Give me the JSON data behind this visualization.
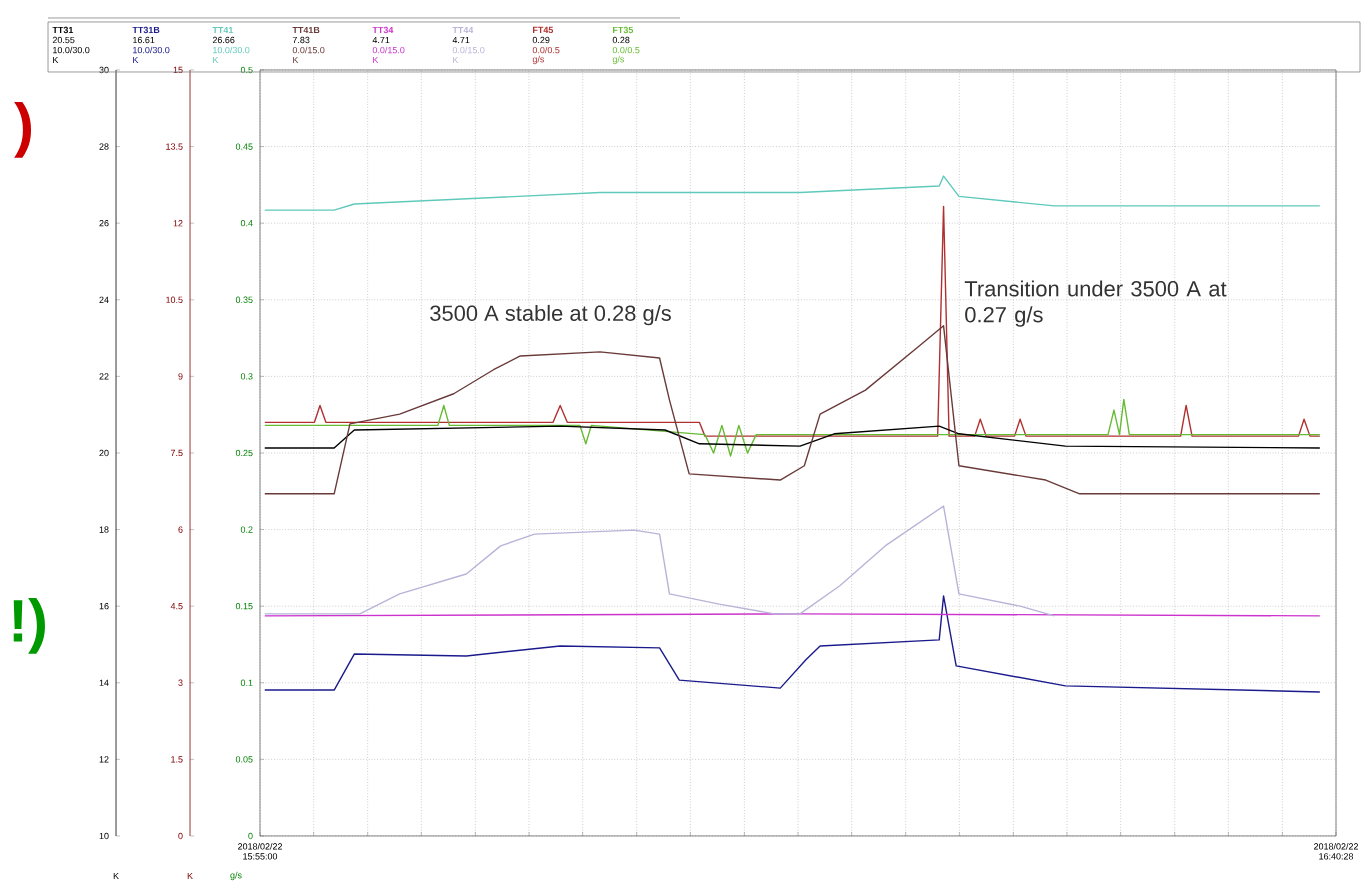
{
  "chart_data": {
    "type": "line",
    "xlim": [
      "2018-02-22T15:55:00",
      "2018-02-22T16:40:28"
    ],
    "xticks": [
      {
        "value": "2018-02-22T15:55:00",
        "label": "2018/02/22 15:55:00"
      },
      {
        "value": "2018-02-22T15:57:16",
        "label": null
      },
      {
        "value": "2018-02-22T15:59:33",
        "label": null
      },
      {
        "value": "2018-02-22T16:01:49",
        "label": null
      },
      {
        "value": "2018-02-22T16:04:06",
        "label": null
      },
      {
        "value": "2018-02-22T16:06:22",
        "label": null
      },
      {
        "value": "2018-02-22T16:08:38",
        "label": null
      },
      {
        "value": "2018-02-22T16:10:55",
        "label": null
      },
      {
        "value": "2018-02-22T16:13:11",
        "label": null
      },
      {
        "value": "2018-02-22T16:15:28",
        "label": null
      },
      {
        "value": "2018-02-22T16:17:44",
        "label": null
      },
      {
        "value": "2018-02-22T16:20:00",
        "label": null
      },
      {
        "value": "2018-02-22T16:22:17",
        "label": null
      },
      {
        "value": "2018-02-22T16:24:33",
        "label": null
      },
      {
        "value": "2018-02-22T16:26:50",
        "label": null
      },
      {
        "value": "2018-02-22T16:29:06",
        "label": null
      },
      {
        "value": "2018-02-22T16:31:22",
        "label": null
      },
      {
        "value": "2018-02-22T16:33:39",
        "label": null
      },
      {
        "value": "2018-02-22T16:35:55",
        "label": null
      },
      {
        "value": "2018-02-22T16:38:12",
        "label": null
      },
      {
        "value": "2018-02-22T16:40:28",
        "label": "2018/02/22 16:40:28"
      }
    ],
    "ylabel": "g/s",
    "ylim": [
      0,
      0.5
    ],
    "yticks": [
      0,
      0.05,
      0.1,
      0.15,
      0.2,
      0.25,
      0.3,
      0.35,
      0.4,
      0.45,
      0.5
    ],
    "y2label": "K",
    "y2lim": [
      10,
      30
    ],
    "y2ticks": [
      10,
      12,
      14,
      16,
      18,
      20,
      22,
      24,
      26,
      28,
      30
    ],
    "y3label": "K",
    "y3lim": [
      0,
      15
    ],
    "y3ticks": [
      0,
      1.5,
      3,
      4.5,
      6,
      7.5,
      9,
      10.5,
      12,
      13.5,
      15
    ],
    "grid": true,
    "legend": "top",
    "series": [
      {
        "name": "TT31",
        "color": "#000000",
        "axis": "y2",
        "x": [
          "2018-02-22T15:55:12",
          "2018-02-22T15:58:08",
          "2018-02-22T15:58:59",
          "2018-02-22T16:07:41",
          "2018-02-22T16:12:07",
          "2018-02-22T16:13:34",
          "2018-02-22T16:17:49",
          "2018-02-22T16:19:16",
          "2018-02-22T16:23:42",
          "2018-02-22T16:24:32",
          "2018-02-22T16:29:02",
          "2018-02-22T16:39:47"
        ],
        "values": [
          20.13,
          20.13,
          20.6,
          20.7,
          20.6,
          20.24,
          20.18,
          20.5,
          20.7,
          20.5,
          20.18,
          20.13
        ]
      },
      {
        "name": "TT31B",
        "color": "#1a1a8c",
        "axis": "y2",
        "x": [
          "2018-02-22T15:55:12",
          "2018-02-22T15:58:08",
          "2018-02-22T15:58:59",
          "2018-02-22T16:03:43",
          "2018-02-22T16:07:41",
          "2018-02-22T16:11:53",
          "2018-02-22T16:12:43",
          "2018-02-22T16:16:59",
          "2018-02-22T16:18:04",
          "2018-02-22T16:18:40",
          "2018-02-22T16:23:42",
          "2018-02-22T16:23:53",
          "2018-02-22T16:24:25",
          "2018-02-22T16:29:02",
          "2018-02-22T16:39:47"
        ],
        "values": [
          13.81,
          13.81,
          14.75,
          14.7,
          14.96,
          14.91,
          14.07,
          13.86,
          14.6,
          14.96,
          15.12,
          16.27,
          14.44,
          13.92,
          13.76
        ]
      },
      {
        "name": "TT41",
        "color": "#5fc9bb",
        "axis": "y2",
        "x": [
          "2018-02-22T15:55:12",
          "2018-02-22T15:58:08",
          "2018-02-22T15:58:59",
          "2018-02-22T16:09:22",
          "2018-02-22T16:17:49",
          "2018-02-22T16:23:42",
          "2018-02-22T16:23:53",
          "2018-02-22T16:24:32",
          "2018-02-22T16:28:34",
          "2018-02-22T16:39:47"
        ],
        "values": [
          26.34,
          26.34,
          26.5,
          26.8,
          26.8,
          26.97,
          27.23,
          26.7,
          26.45,
          26.45
        ]
      },
      {
        "name": "TT41B",
        "color": "#6a3a3a",
        "axis": "y3",
        "x": [
          "2018-02-22T15:55:12",
          "2018-02-22T15:58:08",
          "2018-02-22T15:58:48",
          "2018-02-22T16:00:54",
          "2018-02-22T16:03:11",
          "2018-02-22T16:04:52",
          "2018-02-22T16:06:00",
          "2018-02-22T16:09:22",
          "2018-02-22T16:11:53",
          "2018-02-22T16:12:18",
          "2018-02-22T16:13:08",
          "2018-02-22T16:16:59",
          "2018-02-22T16:18:00",
          "2018-02-22T16:18:40",
          "2018-02-22T16:20:35",
          "2018-02-22T16:22:52",
          "2018-02-22T16:23:53",
          "2018-02-22T16:24:32",
          "2018-02-22T16:28:12",
          "2018-02-22T16:29:38",
          "2018-02-22T16:39:47"
        ],
        "values": [
          6.7,
          6.7,
          8.07,
          8.26,
          8.66,
          9.13,
          9.4,
          9.48,
          9.36,
          8.54,
          7.09,
          6.97,
          7.25,
          8.26,
          8.73,
          9.6,
          9.99,
          7.25,
          6.97,
          6.7,
          6.7
        ]
      },
      {
        "name": "TT34",
        "color": "#cc33cc",
        "axis": "y3",
        "x": [
          "2018-02-22T15:55:12",
          "2018-02-22T16:17:49",
          "2018-02-22T16:39:47"
        ],
        "values": [
          4.31,
          4.35,
          4.31
        ]
      },
      {
        "name": "TT44",
        "color": "#b8b4d8",
        "axis": "y3",
        "x": [
          "2018-02-22T15:55:12",
          "2018-02-22T15:59:13",
          "2018-02-22T16:00:54",
          "2018-02-22T16:03:43",
          "2018-02-22T16:05:10",
          "2018-02-22T16:06:36",
          "2018-02-22T16:10:48",
          "2018-02-22T16:11:53",
          "2018-02-22T16:12:18",
          "2018-02-22T16:14:24",
          "2018-02-22T16:16:44",
          "2018-02-22T16:17:49",
          "2018-02-22T16:19:30",
          "2018-02-22T16:21:25",
          "2018-02-22T16:23:53",
          "2018-02-22T16:24:32",
          "2018-02-22T16:27:07",
          "2018-02-22T16:28:34"
        ],
        "values": [
          4.35,
          4.35,
          4.74,
          5.13,
          5.68,
          5.91,
          5.99,
          5.91,
          4.74,
          4.54,
          4.35,
          4.35,
          4.9,
          5.68,
          6.46,
          4.74,
          4.5,
          4.31
        ]
      },
      {
        "name": "FT45",
        "color": "#b03030",
        "x": [
          "2018-02-22T15:55:12",
          "2018-02-22T15:57:18",
          "2018-02-22T15:57:32",
          "2018-02-22T15:57:47",
          "2018-02-22T16:07:23",
          "2018-02-22T16:07:41",
          "2018-02-22T16:07:59",
          "2018-02-22T16:13:34",
          "2018-02-22T16:13:48",
          "2018-02-22T16:23:38",
          "2018-02-22T16:23:53",
          "2018-02-22T16:24:07",
          "2018-02-22T16:25:12",
          "2018-02-22T16:25:26",
          "2018-02-22T16:25:41",
          "2018-02-22T16:26:53",
          "2018-02-22T16:27:07",
          "2018-02-22T16:27:22",
          "2018-02-22T16:33:54",
          "2018-02-22T16:34:08",
          "2018-02-22T16:34:23",
          "2018-02-22T16:38:53",
          "2018-02-22T16:39:07",
          "2018-02-22T16:39:22",
          "2018-02-22T16:39:47"
        ],
        "values": [
          0.27,
          0.27,
          0.281,
          0.27,
          0.27,
          0.281,
          0.27,
          0.27,
          0.261,
          0.261,
          0.411,
          0.261,
          0.261,
          0.272,
          0.261,
          0.261,
          0.272,
          0.261,
          0.261,
          0.281,
          0.261,
          0.261,
          0.272,
          0.261,
          0.261
        ]
      },
      {
        "name": "FT35",
        "color": "#66bb33",
        "x": [
          "2018-02-22T15:55:12",
          "2018-02-22T16:02:31",
          "2018-02-22T16:02:46",
          "2018-02-22T16:03:00",
          "2018-02-22T16:08:31",
          "2018-02-22T16:08:46",
          "2018-02-22T16:09:00",
          "2018-02-22T16:13:48",
          "2018-02-22T16:14:10",
          "2018-02-22T16:14:31",
          "2018-02-22T16:14:53",
          "2018-02-22T16:15:14",
          "2018-02-22T16:15:36",
          "2018-02-22T16:15:58",
          "2018-02-22T16:24:00",
          "2018-02-22T16:30:50",
          "2018-02-22T16:31:05",
          "2018-02-22T16:31:19",
          "2018-02-22T16:31:30",
          "2018-02-22T16:31:44",
          "2018-02-22T16:39:47"
        ],
        "values": [
          0.268,
          0.268,
          0.281,
          0.268,
          0.268,
          0.256,
          0.268,
          0.262,
          0.25,
          0.268,
          0.248,
          0.268,
          0.25,
          0.262,
          0.262,
          0.262,
          0.278,
          0.262,
          0.285,
          0.262,
          0.262
        ]
      }
    ],
    "annotations": [
      "3500 A stable at 0.28 g/s",
      "Transition under 3500 A at 0.27 g/s",
      ")",
      "!)",
      "20.55",
      "10.0/30.0",
      "K",
      "16.61",
      "10.0/30.0",
      "K",
      "26.66",
      "10.0/30.0",
      "K",
      "7.83",
      "0.0/15.0",
      "K",
      "4.71",
      "0.0/15.0",
      "K",
      "4.71",
      "0.0/15.0",
      "K",
      "0.29",
      "0.0/0.5",
      "g/s",
      "0.28",
      "0.0/0.5",
      "g/s"
    ]
  }
}
